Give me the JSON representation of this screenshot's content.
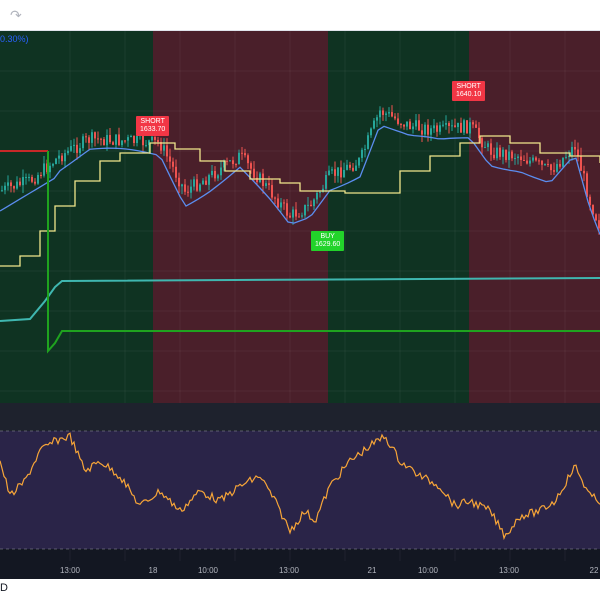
{
  "toolbar": {
    "redo_icon": "redo-icon"
  },
  "header": {
    "pct_label": "0.30%)"
  },
  "signals": [
    {
      "type": "SHORT",
      "price": "1633.70"
    },
    {
      "type": "SHORT",
      "price": "1640.10"
    },
    {
      "type": "BUY",
      "price": "1629.60"
    }
  ],
  "x_axis": {
    "ticks": [
      "13:00",
      "18",
      "10:00",
      "13:00",
      "21",
      "10:00",
      "13:00",
      "22"
    ]
  },
  "footer": {
    "tz_glyph": "D"
  },
  "colors": {
    "background": "#131722",
    "bull_zone": "#0f3322",
    "bear_zone": "#4a1f2a",
    "up_candle": "#26a69a",
    "down_candle": "#ef5350",
    "ma_yellow": "#f0e68c",
    "ma_blue": "#5b8def",
    "teal_line": "#3fb7b0",
    "green_line": "#1fa31f",
    "oscillator": "#f7a538",
    "osc_bg": "#2a2448"
  }
}
